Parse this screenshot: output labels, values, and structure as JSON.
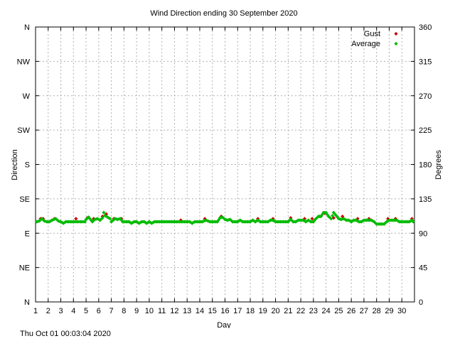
{
  "footer": "Thu Oct 01 00:03:04 2020",
  "chart_data": {
    "type": "scatter",
    "title": "Wind Direction ending 30 September 2020",
    "xlabel": "Day",
    "ylabel": "Direction",
    "y2label": "Degrees",
    "xlim": [
      1,
      31
    ],
    "ylim": [
      0,
      360
    ],
    "grid": true,
    "legend_position": "top-right",
    "x_ticks": [
      1,
      2,
      3,
      4,
      5,
      6,
      7,
      8,
      9,
      10,
      11,
      12,
      13,
      14,
      15,
      16,
      17,
      18,
      19,
      20,
      21,
      22,
      23,
      24,
      25,
      26,
      27,
      28,
      29,
      30
    ],
    "y_ticks_left": [
      {
        "value": 0,
        "label": "N"
      },
      {
        "value": 45,
        "label": "NE"
      },
      {
        "value": 90,
        "label": "E"
      },
      {
        "value": 135,
        "label": "SE"
      },
      {
        "value": 180,
        "label": "S"
      },
      {
        "value": 225,
        "label": "SW"
      },
      {
        "value": 270,
        "label": "W"
      },
      {
        "value": 315,
        "label": "NW"
      },
      {
        "value": 360,
        "label": "N"
      }
    ],
    "y_ticks_right": [
      0,
      45,
      90,
      135,
      180,
      225,
      270,
      315,
      360
    ],
    "series": [
      {
        "name": "Gust",
        "color": "#cc0000",
        "points": [
          [
            1.4,
            109
          ],
          [
            1.6,
            109
          ],
          [
            2.5,
            109
          ],
          [
            4.2,
            109
          ],
          [
            5.1,
            110
          ],
          [
            5.6,
            109
          ],
          [
            6.3,
            112
          ],
          [
            6.6,
            115
          ],
          [
            7.2,
            109
          ],
          [
            7.8,
            109
          ],
          [
            12.5,
            107
          ],
          [
            14.4,
            109
          ],
          [
            15.7,
            112
          ],
          [
            18.6,
            109
          ],
          [
            19.8,
            109
          ],
          [
            21.2,
            110
          ],
          [
            22.3,
            109
          ],
          [
            22.9,
            109
          ],
          [
            23.5,
            112
          ],
          [
            23.9,
            116
          ],
          [
            24.6,
            110
          ],
          [
            25.3,
            112
          ],
          [
            26.5,
            109
          ],
          [
            27.4,
            109
          ],
          [
            28.9,
            109
          ],
          [
            29.5,
            109
          ],
          [
            30.8,
            109
          ]
        ]
      },
      {
        "name": "Average",
        "color": "#00bb00",
        "points": [
          [
            1.1,
            105
          ],
          [
            1.3,
            106
          ],
          [
            1.5,
            109
          ],
          [
            1.7,
            106
          ],
          [
            1.9,
            105
          ],
          [
            2.1,
            105
          ],
          [
            2.3,
            107
          ],
          [
            2.6,
            109
          ],
          [
            2.8,
            106
          ],
          [
            3.0,
            105
          ],
          [
            3.2,
            103
          ],
          [
            3.4,
            105
          ],
          [
            3.6,
            105
          ],
          [
            3.8,
            105
          ],
          [
            4.0,
            105
          ],
          [
            4.3,
            105
          ],
          [
            4.6,
            105
          ],
          [
            4.9,
            105
          ],
          [
            5.0,
            108
          ],
          [
            5.2,
            111
          ],
          [
            5.4,
            107
          ],
          [
            5.5,
            105
          ],
          [
            5.7,
            108
          ],
          [
            5.9,
            109
          ],
          [
            6.1,
            107
          ],
          [
            6.3,
            110
          ],
          [
            6.4,
            117
          ],
          [
            6.5,
            113
          ],
          [
            6.7,
            111
          ],
          [
            6.9,
            109
          ],
          [
            7.0,
            105
          ],
          [
            7.3,
            109
          ],
          [
            7.5,
            108
          ],
          [
            7.7,
            109
          ],
          [
            7.9,
            105
          ],
          [
            8.2,
            105
          ],
          [
            8.4,
            105
          ],
          [
            8.6,
            103
          ],
          [
            8.8,
            105
          ],
          [
            9.0,
            105
          ],
          [
            9.2,
            103
          ],
          [
            9.4,
            105
          ],
          [
            9.6,
            105
          ],
          [
            9.8,
            103
          ],
          [
            10.0,
            105
          ],
          [
            10.2,
            103
          ],
          [
            10.4,
            105
          ],
          [
            10.6,
            105
          ],
          [
            10.8,
            105
          ],
          [
            11.0,
            105
          ],
          [
            11.2,
            105
          ],
          [
            11.4,
            105
          ],
          [
            11.6,
            105
          ],
          [
            11.8,
            105
          ],
          [
            12.0,
            105
          ],
          [
            12.2,
            105
          ],
          [
            12.4,
            105
          ],
          [
            12.6,
            105
          ],
          [
            12.8,
            105
          ],
          [
            13.0,
            105
          ],
          [
            13.2,
            105
          ],
          [
            13.4,
            103
          ],
          [
            13.6,
            105
          ],
          [
            13.8,
            105
          ],
          [
            14.0,
            105
          ],
          [
            14.2,
            105
          ],
          [
            14.5,
            107
          ],
          [
            14.8,
            105
          ],
          [
            15.0,
            105
          ],
          [
            15.2,
            105
          ],
          [
            15.4,
            105
          ],
          [
            15.6,
            110
          ],
          [
            15.8,
            111
          ],
          [
            16.0,
            108
          ],
          [
            16.2,
            107
          ],
          [
            16.4,
            108
          ],
          [
            16.6,
            105
          ],
          [
            16.8,
            105
          ],
          [
            17.0,
            105
          ],
          [
            17.2,
            107
          ],
          [
            17.4,
            105
          ],
          [
            17.6,
            105
          ],
          [
            17.8,
            105
          ],
          [
            18.0,
            105
          ],
          [
            18.2,
            107
          ],
          [
            18.4,
            105
          ],
          [
            18.6,
            107
          ],
          [
            18.8,
            105
          ],
          [
            19.0,
            105
          ],
          [
            19.2,
            105
          ],
          [
            19.4,
            105
          ],
          [
            19.6,
            107
          ],
          [
            19.8,
            107
          ],
          [
            20.0,
            105
          ],
          [
            20.2,
            105
          ],
          [
            20.4,
            105
          ],
          [
            20.6,
            105
          ],
          [
            20.8,
            105
          ],
          [
            21.0,
            105
          ],
          [
            21.2,
            108
          ],
          [
            21.4,
            105
          ],
          [
            21.6,
            105
          ],
          [
            21.8,
            107
          ],
          [
            22.0,
            107
          ],
          [
            22.2,
            107
          ],
          [
            22.4,
            105
          ],
          [
            22.6,
            107
          ],
          [
            22.8,
            105
          ],
          [
            23.0,
            105
          ],
          [
            23.2,
            109
          ],
          [
            23.4,
            112
          ],
          [
            23.6,
            112
          ],
          [
            23.8,
            117
          ],
          [
            24.0,
            117
          ],
          [
            24.2,
            112
          ],
          [
            24.4,
            109
          ],
          [
            24.6,
            117
          ],
          [
            24.8,
            113
          ],
          [
            25.0,
            109
          ],
          [
            25.2,
            108
          ],
          [
            25.4,
            109
          ],
          [
            25.6,
            107
          ],
          [
            25.8,
            107
          ],
          [
            26.0,
            105
          ],
          [
            26.2,
            107
          ],
          [
            26.4,
            107
          ],
          [
            26.6,
            105
          ],
          [
            26.8,
            105
          ],
          [
            27.0,
            107
          ],
          [
            27.2,
            107
          ],
          [
            27.4,
            107
          ],
          [
            27.6,
            107
          ],
          [
            27.8,
            105
          ],
          [
            28.0,
            102
          ],
          [
            28.2,
            102
          ],
          [
            28.4,
            102
          ],
          [
            28.6,
            102
          ],
          [
            28.8,
            105
          ],
          [
            29.0,
            107
          ],
          [
            29.2,
            107
          ],
          [
            29.4,
            107
          ],
          [
            29.6,
            107
          ],
          [
            29.8,
            105
          ],
          [
            30.0,
            105
          ],
          [
            30.2,
            105
          ],
          [
            30.4,
            105
          ],
          [
            30.6,
            105
          ],
          [
            30.8,
            107
          ],
          [
            30.9,
            105
          ]
        ]
      }
    ]
  }
}
